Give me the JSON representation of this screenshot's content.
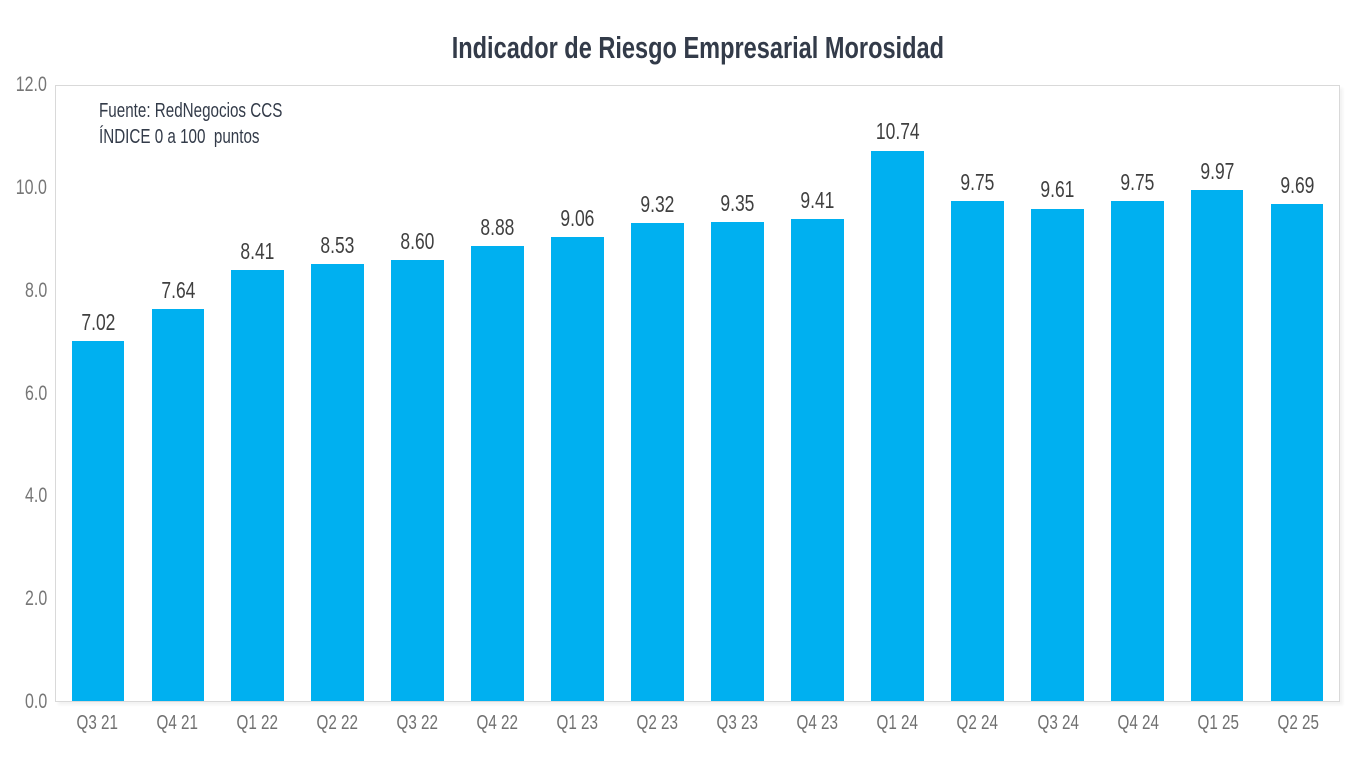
{
  "chart_data": {
    "type": "bar",
    "title": "Indicador de Riesgo Empresarial Morosidad",
    "categories": [
      "Q3 21",
      "Q4 21",
      "Q1 22",
      "Q2 22",
      "Q3 22",
      "Q4 22",
      "Q1 23",
      "Q2 23",
      "Q3 23",
      "Q4 23",
      "Q1 24",
      "Q2 24",
      "Q3 24",
      "Q4 24",
      "Q1 25",
      "Q2 25"
    ],
    "values": [
      7.02,
      7.64,
      8.41,
      8.53,
      8.6,
      8.88,
      9.06,
      9.32,
      9.35,
      9.41,
      10.74,
      9.75,
      9.61,
      9.75,
      9.97,
      9.69
    ],
    "value_labels": [
      "7.02",
      "7.64",
      "8.41",
      "8.53",
      "8.60",
      "8.88",
      "9.06",
      "9.32",
      "9.35",
      "9.41",
      "10.74",
      "9.75",
      "9.61",
      "9.75",
      "9.97",
      "9.69"
    ],
    "xlabel": "",
    "ylabel": "",
    "ylim": [
      0,
      12
    ],
    "ytick_labels": [
      "0.0",
      "2.0",
      "4.0",
      "6.0",
      "8.0",
      "10.0",
      "12.0"
    ],
    "grid": false,
    "legend_position": "none",
    "annotations": [
      "Fuente: RedNegocios CCS",
      "ÍNDICE 0 a 100  puntos"
    ],
    "bar_color": "#00B0F0"
  },
  "colors": {
    "bar": "#00B0F0",
    "title_text": "#333B49",
    "data_label": "#3F3F3F",
    "axis_label": "#747474",
    "plot_border": "#D9D9D9",
    "background": "#FFFFFF"
  }
}
